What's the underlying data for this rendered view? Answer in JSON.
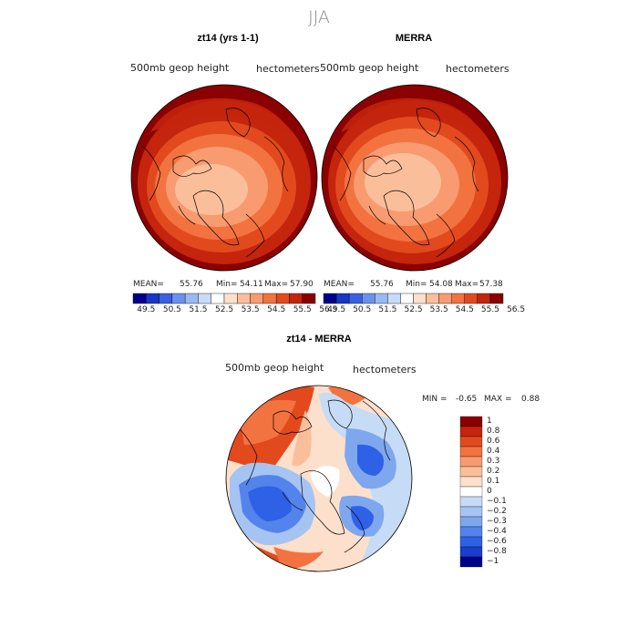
{
  "title": "JJA",
  "colors": {
    "pos": [
      "#fde0cc",
      "#fbbe9b",
      "#f89b70",
      "#f27340",
      "#e24a1e",
      "#c4250c",
      "#8b0000"
    ],
    "neg": [
      "#ffffff",
      "#c6dbf5",
      "#a6c4f2",
      "#7ea7ee",
      "#5583ec",
      "#2f61e6",
      "#1a3ecf",
      "#00008b"
    ],
    "ramp49": [
      "#00008b",
      "#1737c4",
      "#3a5fe0",
      "#6a91ec",
      "#9ab8f2",
      "#c8dbf7",
      "#ffffff",
      "#fde0cc",
      "#fbbe9b",
      "#f89b70",
      "#f27340",
      "#e24a1e",
      "#c4250c",
      "#8b0000"
    ]
  },
  "panels": [
    {
      "title": "zt14 (yrs 1-1)",
      "var_label": "500mb  geop  height",
      "units": "hectometers",
      "stats": {
        "mean_label": "MEAN=",
        "mean": "55.76",
        "min_label": "Min=",
        "min": "54.11",
        "max_label": "Max=",
        "max": "57.90"
      }
    },
    {
      "title": "MERRA",
      "var_label": "500mb  geop  height",
      "units": "hectometers",
      "stats": {
        "mean_label": "MEAN=",
        "mean": "55.76",
        "min_label": "Min=",
        "min": "54.08",
        "max_label": "Max=",
        "max": "57.38"
      }
    },
    {
      "title": "zt14 - MERRA",
      "var_label": "500mb  geop  height",
      "units": "hectometers",
      "stats": {
        "min_label": "MIN =",
        "min": "-0.65",
        "max_label": "MAX =",
        "max": "0.88"
      }
    }
  ],
  "horizontal_colorbar": {
    "tick_labels": [
      "49.5",
      "50.5",
      "51.5",
      "52.5",
      "53.5",
      "54.5",
      "55.5",
      "56.5"
    ]
  },
  "vertical_colorbar": {
    "tick_labels": [
      "1",
      "0.8",
      "0.6",
      "0.4",
      "0.3",
      "0.2",
      "0.1",
      "0",
      "−0.1",
      "−0.2",
      "−0.3",
      "−0.4",
      "−0.6",
      "−0.8",
      "−1"
    ]
  },
  "chart_data": [
    {
      "type": "heatmap",
      "projection": "north polar stereographic",
      "title": "zt14 (yrs 1-1)",
      "variable": "500mb geop height",
      "units": "hectometers",
      "mean": 55.76,
      "min": 54.11,
      "max": 57.9,
      "levels": [
        49.5,
        50.5,
        51.5,
        52.5,
        53.5,
        54.5,
        55.5,
        56.5
      ]
    },
    {
      "type": "heatmap",
      "projection": "north polar stereographic",
      "title": "MERRA",
      "variable": "500mb geop height",
      "units": "hectometers",
      "mean": 55.76,
      "min": 54.08,
      "max": 57.38,
      "levels": [
        49.5,
        50.5,
        51.5,
        52.5,
        53.5,
        54.5,
        55.5,
        56.5
      ]
    },
    {
      "type": "heatmap",
      "projection": "north polar stereographic",
      "title": "zt14 - MERRA",
      "variable": "500mb geop height difference",
      "units": "hectometers",
      "min": -0.65,
      "max": 0.88,
      "levels": [
        -1,
        -0.8,
        -0.6,
        -0.4,
        -0.3,
        -0.2,
        -0.1,
        0,
        0.1,
        0.2,
        0.3,
        0.4,
        0.6,
        0.8,
        1
      ]
    }
  ]
}
